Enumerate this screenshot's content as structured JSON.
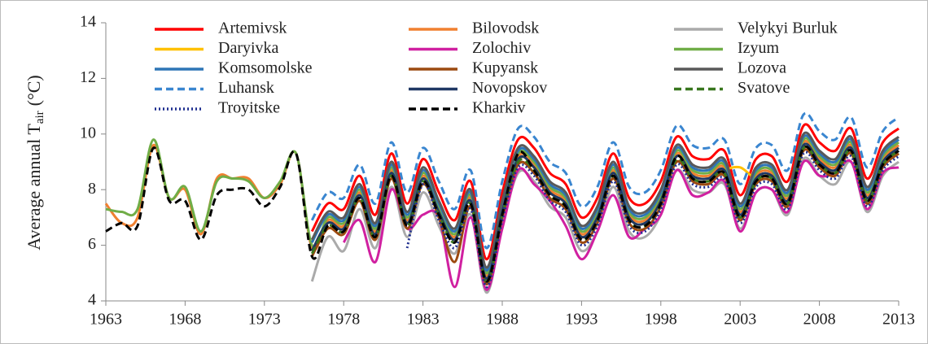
{
  "chart_data": {
    "type": "line",
    "y_label": {
      "main": "Average annual T",
      "sub": "air",
      "unit": "(°C)"
    },
    "x": [
      1963,
      1964,
      1965,
      1966,
      1967,
      1968,
      1969,
      1970,
      1971,
      1972,
      1973,
      1974,
      1975,
      1976,
      1977,
      1978,
      1979,
      1980,
      1981,
      1982,
      1983,
      1984,
      1985,
      1986,
      1987,
      1988,
      1989,
      1990,
      1991,
      1992,
      1993,
      1994,
      1995,
      1996,
      1997,
      1998,
      1999,
      2000,
      2001,
      2002,
      2003,
      2004,
      2005,
      2006,
      2007,
      2008,
      2009,
      2010,
      2011,
      2012,
      2013
    ],
    "xlim": [
      1963,
      2013
    ],
    "xticks": [
      1963,
      1968,
      1973,
      1978,
      1983,
      1988,
      1993,
      1998,
      2003,
      2008,
      2013
    ],
    "ylim": [
      4,
      14
    ],
    "yticks": [
      4,
      6,
      8,
      10,
      12,
      14
    ],
    "series": [
      {
        "name": "Artemivsk",
        "color": "#ff0000",
        "dash": "solid",
        "values": [
          null,
          null,
          null,
          null,
          null,
          null,
          null,
          null,
          null,
          null,
          null,
          null,
          null,
          6.5,
          7.5,
          7.3,
          8.5,
          7.1,
          9.3,
          7.5,
          9.1,
          7.9,
          6.9,
          8.3,
          5.5,
          7.9,
          9.8,
          9.5,
          8.6,
          8.2,
          7.0,
          7.7,
          9.3,
          7.7,
          7.5,
          8.3,
          9.9,
          9.2,
          9.1,
          9.4,
          7.8,
          9.1,
          9.2,
          8.3,
          10.3,
          9.7,
          9.4,
          10.2,
          8.4,
          9.7,
          10.2
        ]
      },
      {
        "name": "Bilovodsk",
        "color": "#f08030",
        "dash": "solid",
        "values": [
          7.5,
          6.8,
          7.0,
          9.6,
          7.7,
          8.0,
          6.4,
          8.4,
          8.4,
          8.4,
          7.7,
          8.2,
          9.3,
          5.9,
          6.9,
          6.7,
          7.9,
          6.5,
          8.7,
          6.9,
          8.5,
          7.3,
          6.3,
          7.7,
          4.9,
          7.3,
          9.2,
          8.9,
          8.0,
          7.6,
          6.4,
          7.1,
          8.7,
          7.1,
          6.9,
          7.7,
          9.3,
          8.6,
          8.5,
          8.8,
          7.2,
          8.5,
          8.6,
          7.7,
          9.7,
          9.1,
          8.8,
          9.6,
          7.8,
          9.1,
          9.6
        ]
      },
      {
        "name": "Velykyi Burluk",
        "color": "#aaaaaa",
        "dash": "solid",
        "values": [
          null,
          null,
          null,
          null,
          null,
          null,
          null,
          null,
          null,
          null,
          null,
          null,
          null,
          4.7,
          6.3,
          5.8,
          7.3,
          5.9,
          8.1,
          6.3,
          7.9,
          6.7,
          5.7,
          7.1,
          4.3,
          6.7,
          8.6,
          8.3,
          7.4,
          7.0,
          5.8,
          6.5,
          8.1,
          6.5,
          6.3,
          7.1,
          8.7,
          8.0,
          7.9,
          8.2,
          6.6,
          7.9,
          8.0,
          7.1,
          9.1,
          8.5,
          8.2,
          9.0,
          7.2,
          8.5,
          9.0
        ]
      },
      {
        "name": "Daryivka",
        "color": "#ffc000",
        "dash": "solid",
        "values": [
          null,
          null,
          null,
          null,
          null,
          null,
          null,
          null,
          null,
          null,
          null,
          null,
          null,
          5.8,
          6.8,
          6.6,
          7.8,
          6.4,
          8.6,
          6.8,
          8.4,
          7.2,
          6.2,
          7.6,
          4.8,
          7.2,
          9.1,
          8.8,
          7.9,
          7.5,
          6.3,
          7.0,
          8.6,
          7.0,
          6.8,
          7.6,
          9.2,
          8.5,
          8.4,
          8.7,
          8.8,
          8.4,
          8.5,
          7.6,
          9.6,
          9.0,
          8.7,
          9.5,
          7.7,
          9.0,
          9.5
        ]
      },
      {
        "name": "Zolochiv",
        "color": "#d020a0",
        "dash": "solid",
        "values": [
          null,
          null,
          null,
          null,
          null,
          null,
          null,
          null,
          null,
          null,
          null,
          null,
          null,
          null,
          null,
          6.1,
          6.9,
          5.4,
          8.0,
          6.6,
          7.1,
          7.0,
          4.5,
          7.0,
          4.4,
          6.6,
          8.7,
          8.2,
          7.6,
          6.7,
          5.5,
          6.5,
          7.8,
          6.3,
          6.6,
          7.1,
          8.7,
          7.8,
          7.9,
          8.3,
          6.5,
          7.9,
          8.0,
          7.2,
          9.0,
          8.5,
          8.6,
          9.0,
          7.3,
          8.6,
          8.8
        ]
      },
      {
        "name": "Izyum",
        "color": "#70ad47",
        "dash": "solid",
        "values": [
          7.3,
          7.2,
          7.3,
          9.8,
          7.7,
          8.1,
          6.5,
          8.3,
          8.4,
          8.3,
          7.7,
          8.3,
          9.3,
          6.0,
          7.0,
          6.8,
          8.0,
          6.6,
          8.8,
          7.0,
          8.6,
          7.4,
          6.4,
          7.8,
          5.0,
          7.4,
          9.3,
          9.0,
          8.1,
          7.7,
          6.5,
          7.2,
          8.8,
          7.2,
          7.0,
          7.8,
          9.4,
          8.7,
          8.6,
          8.9,
          7.3,
          8.6,
          8.7,
          7.8,
          9.8,
          9.2,
          8.9,
          9.7,
          7.9,
          9.2,
          9.7
        ]
      },
      {
        "name": "Komsomolske",
        "color": "#2e75b6",
        "dash": "solid",
        "values": [
          null,
          null,
          null,
          null,
          null,
          null,
          null,
          null,
          null,
          null,
          null,
          null,
          null,
          6.1,
          7.1,
          6.9,
          8.1,
          6.7,
          8.9,
          7.1,
          8.7,
          7.5,
          6.5,
          7.9,
          5.1,
          7.5,
          9.4,
          9.1,
          8.2,
          7.8,
          6.6,
          7.3,
          8.9,
          7.3,
          7.1,
          7.9,
          9.5,
          8.8,
          8.7,
          9.0,
          7.4,
          8.7,
          8.8,
          7.9,
          9.9,
          9.3,
          9.0,
          9.8,
          8.0,
          9.3,
          9.8
        ]
      },
      {
        "name": "Kupyansk",
        "color": "#9c4a10",
        "dash": "solid",
        "values": [
          null,
          null,
          null,
          null,
          null,
          null,
          null,
          null,
          null,
          null,
          null,
          null,
          null,
          5.6,
          6.6,
          6.4,
          7.6,
          6.2,
          8.4,
          6.6,
          8.2,
          7.0,
          5.4,
          7.4,
          4.6,
          7.0,
          8.9,
          8.6,
          7.7,
          7.3,
          6.1,
          6.8,
          8.4,
          6.8,
          6.6,
          7.4,
          9.0,
          8.3,
          8.2,
          8.5,
          6.9,
          8.2,
          8.3,
          7.4,
          9.4,
          8.8,
          8.5,
          9.3,
          7.5,
          8.8,
          9.3
        ]
      },
      {
        "name": "Lozova",
        "color": "#595959",
        "dash": "solid",
        "values": [
          null,
          null,
          null,
          null,
          null,
          null,
          null,
          null,
          null,
          null,
          null,
          null,
          null,
          6.2,
          7.2,
          7.0,
          8.2,
          6.8,
          9.0,
          7.2,
          8.8,
          7.6,
          6.6,
          8.0,
          5.2,
          7.6,
          9.5,
          9.2,
          8.3,
          7.9,
          6.7,
          7.4,
          9.0,
          7.4,
          7.2,
          8.0,
          9.6,
          8.9,
          8.8,
          9.1,
          7.5,
          8.8,
          8.9,
          8.0,
          10.0,
          9.4,
          9.1,
          9.9,
          8.1,
          9.4,
          9.9
        ]
      },
      {
        "name": "Luhansk",
        "color": "#3a86d0",
        "dash": "dashed",
        "values": [
          null,
          null,
          null,
          null,
          null,
          null,
          null,
          null,
          null,
          null,
          null,
          null,
          null,
          6.9,
          7.9,
          7.7,
          8.9,
          7.5,
          9.7,
          7.9,
          9.5,
          8.3,
          7.3,
          8.7,
          5.9,
          8.3,
          10.2,
          9.9,
          9.0,
          8.6,
          7.4,
          8.1,
          9.7,
          8.1,
          7.9,
          8.7,
          10.3,
          9.6,
          9.5,
          9.8,
          8.2,
          9.5,
          9.6,
          8.7,
          10.7,
          10.1,
          9.8,
          10.6,
          8.8,
          10.1,
          10.6
        ]
      },
      {
        "name": "Novopskov",
        "color": "#203864",
        "dash": "solid",
        "values": [
          null,
          null,
          null,
          null,
          null,
          null,
          null,
          null,
          null,
          null,
          null,
          null,
          null,
          5.8,
          6.8,
          6.6,
          7.8,
          6.4,
          8.6,
          6.8,
          8.4,
          7.2,
          6.2,
          7.6,
          4.8,
          7.2,
          9.1,
          8.8,
          7.9,
          7.5,
          6.3,
          7.0,
          8.6,
          7.0,
          6.8,
          7.6,
          9.2,
          8.5,
          8.4,
          8.7,
          7.1,
          8.4,
          8.5,
          7.6,
          9.6,
          9.0,
          8.7,
          9.5,
          7.7,
          9.0,
          9.5
        ]
      },
      {
        "name": "Svatove",
        "color": "#38761d",
        "dash": "dashed",
        "values": [
          null,
          null,
          null,
          null,
          null,
          null,
          null,
          null,
          null,
          null,
          null,
          null,
          null,
          5.7,
          6.7,
          6.5,
          7.7,
          6.3,
          8.5,
          6.7,
          8.3,
          7.1,
          6.1,
          7.5,
          4.7,
          7.1,
          9.0,
          8.7,
          7.8,
          7.4,
          6.2,
          6.9,
          8.5,
          6.9,
          6.7,
          7.5,
          9.1,
          8.4,
          8.3,
          8.6,
          7.0,
          8.3,
          8.4,
          7.5,
          9.5,
          8.9,
          8.6,
          9.4,
          7.6,
          8.9,
          9.4
        ]
      },
      {
        "name": "Troyitske",
        "color": "#203090",
        "dash": "dotted",
        "values": [
          null,
          null,
          null,
          null,
          null,
          null,
          null,
          null,
          null,
          null,
          null,
          null,
          null,
          null,
          null,
          null,
          null,
          null,
          null,
          5.9,
          8.2,
          6.9,
          5.9,
          7.3,
          4.5,
          6.9,
          8.8,
          8.5,
          7.6,
          7.2,
          6.0,
          6.7,
          8.3,
          6.7,
          6.5,
          7.3,
          8.9,
          8.2,
          8.1,
          8.4,
          6.8,
          8.1,
          8.2,
          7.3,
          9.3,
          8.7,
          8.4,
          9.2,
          7.4,
          8.7,
          9.2
        ]
      },
      {
        "name": "Kharkiv",
        "color": "#000000",
        "dash": "dashed",
        "values": [
          6.5,
          6.8,
          6.7,
          9.5,
          7.6,
          7.6,
          6.2,
          7.8,
          8.0,
          8.0,
          7.4,
          8.1,
          9.3,
          5.6,
          6.7,
          6.5,
          7.7,
          6.3,
          8.5,
          6.7,
          8.3,
          7.1,
          6.1,
          7.5,
          4.7,
          7.1,
          9.3,
          8.7,
          7.8,
          7.4,
          6.2,
          6.9,
          8.5,
          6.9,
          6.7,
          7.5,
          9.2,
          8.4,
          8.3,
          8.6,
          7.0,
          8.3,
          8.4,
          7.5,
          9.5,
          8.9,
          8.6,
          9.4,
          7.6,
          8.9,
          9.4
        ]
      }
    ]
  }
}
